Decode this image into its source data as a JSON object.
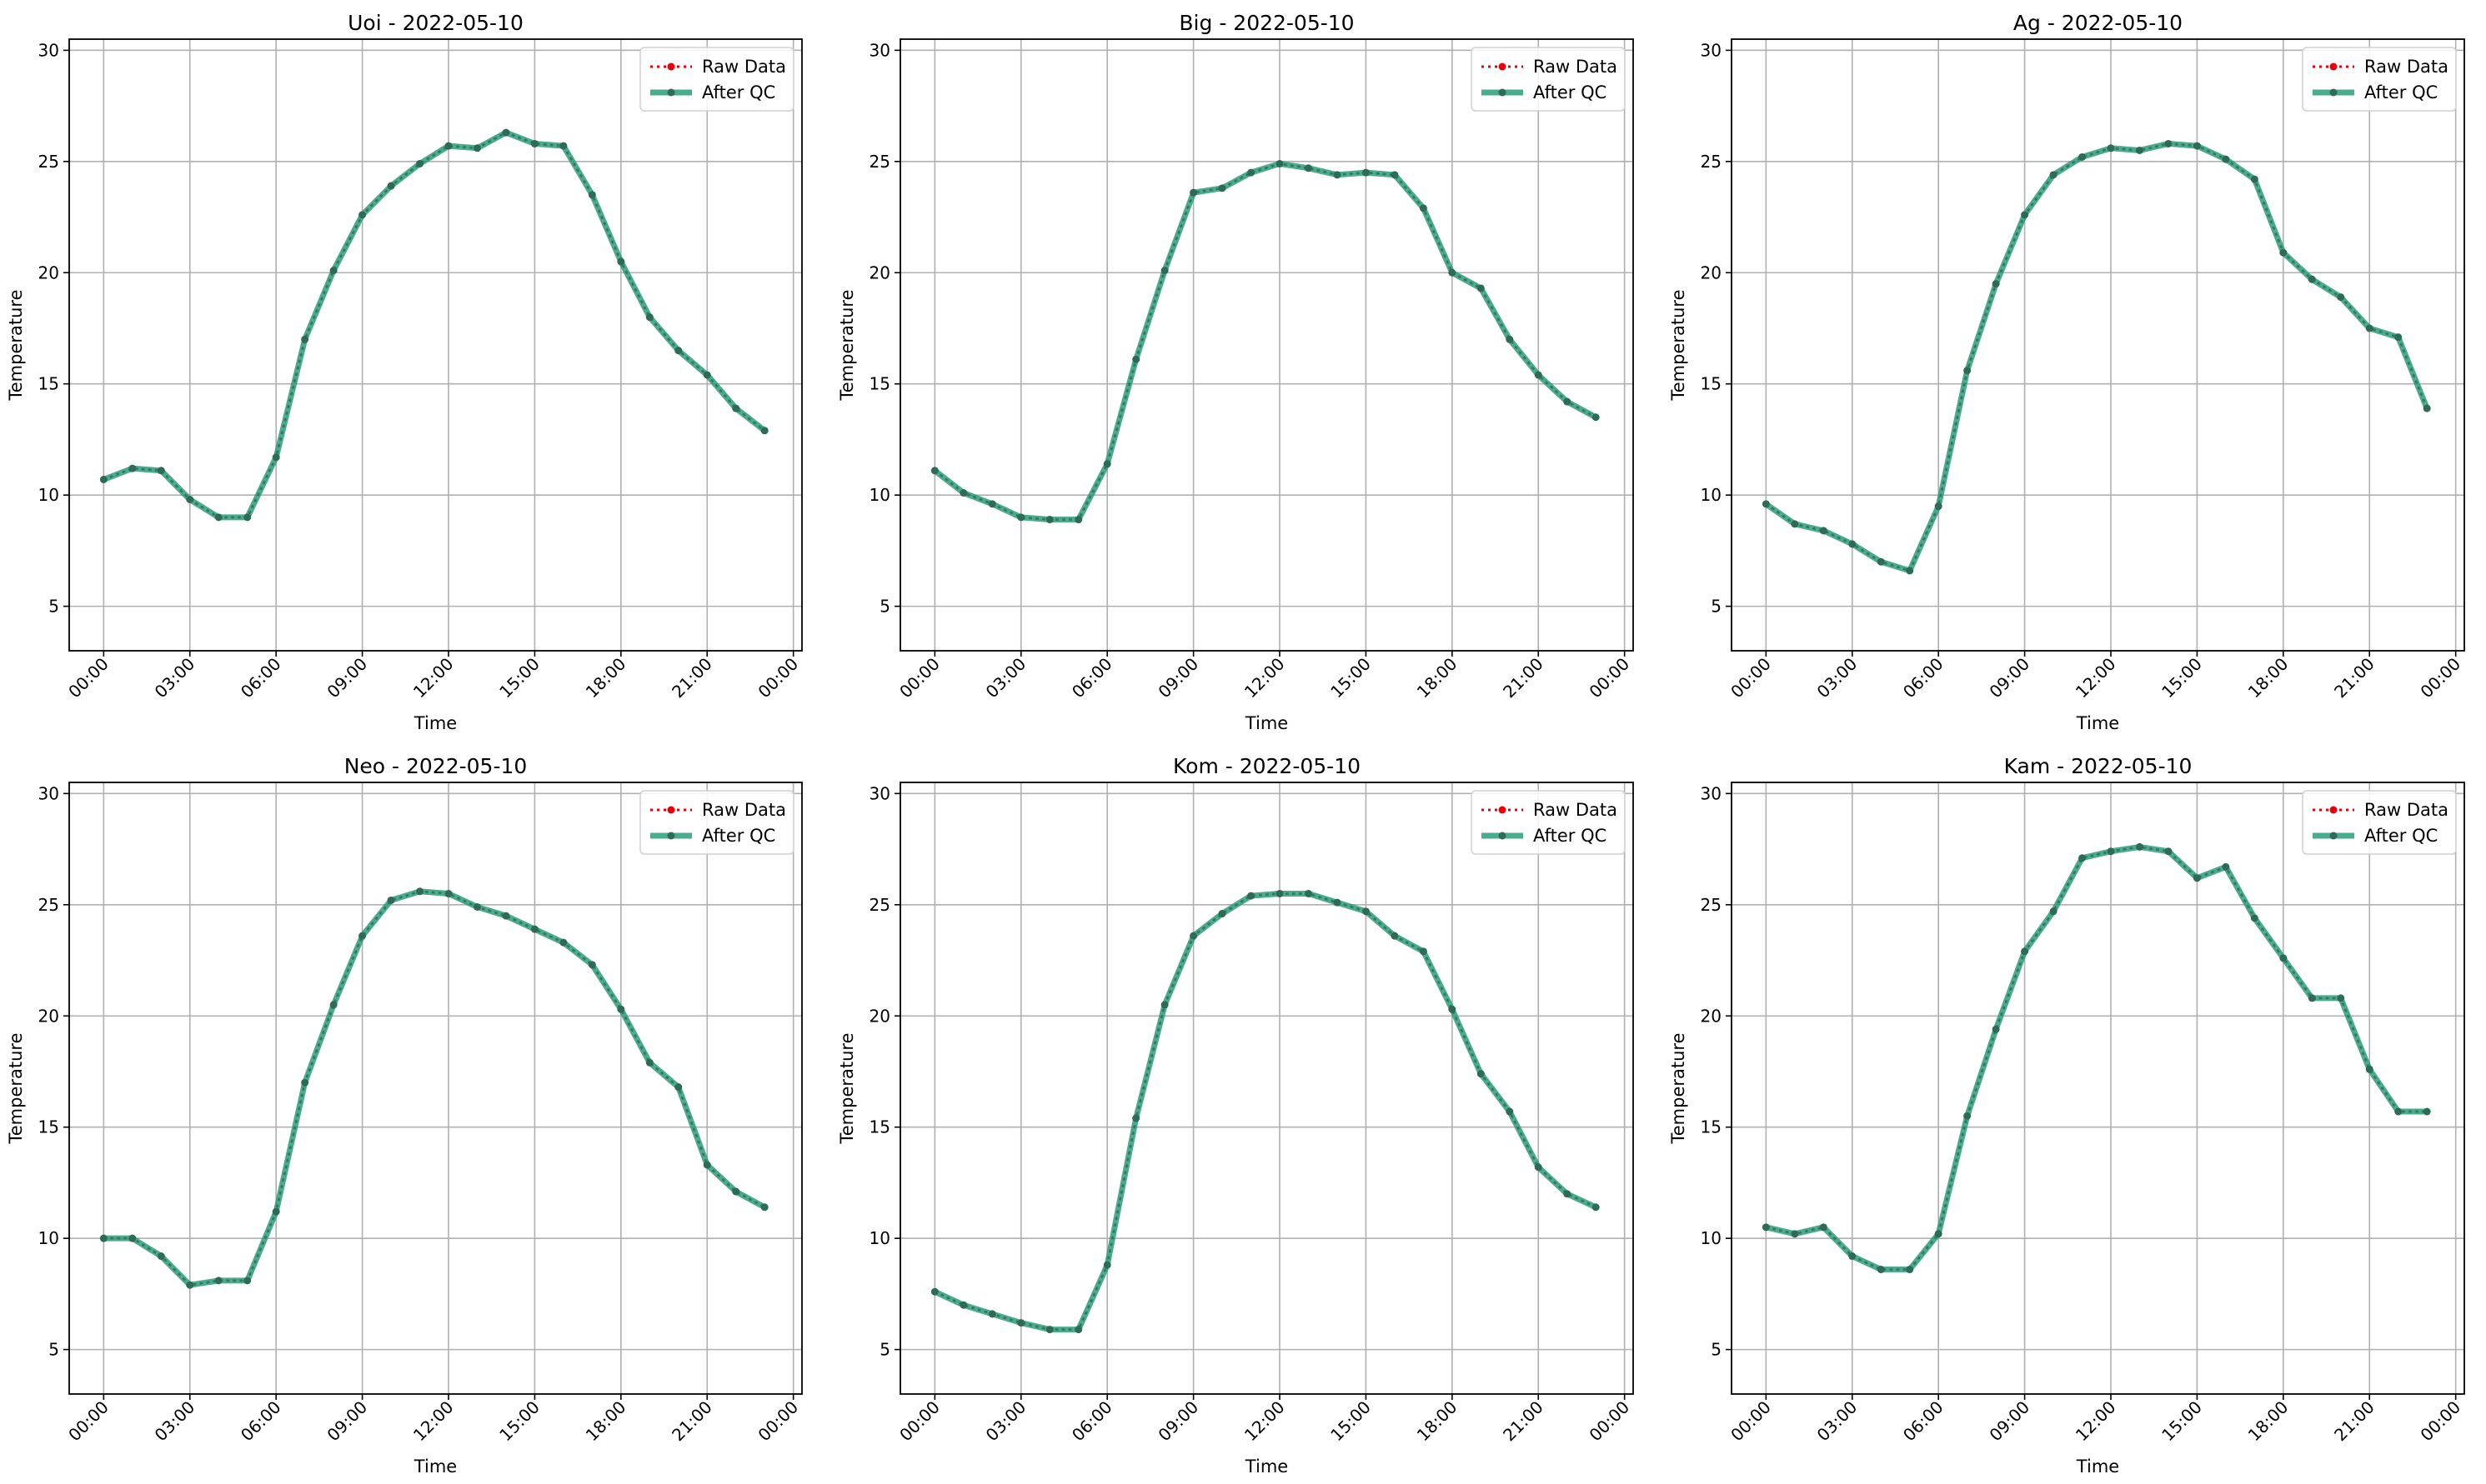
{
  "colors": {
    "raw": "#e8000b",
    "qc": "#2a9d7a",
    "qc_markers": "#2e6b57",
    "grid": "#b0b0b0",
    "axes": "#000000"
  },
  "legend": {
    "raw_label": "Raw Data",
    "qc_label": "After QC",
    "placement": "upper-right"
  },
  "chart_data": [
    {
      "type": "line",
      "title": "Uoi - 2022-05-10",
      "xlabel": "Time",
      "ylabel": "Temperature",
      "ylim": [
        3,
        30.5
      ],
      "yticks": [
        5,
        10,
        15,
        20,
        25,
        30
      ],
      "xticks": [
        "00:00",
        "03:00",
        "06:00",
        "09:00",
        "12:00",
        "15:00",
        "18:00",
        "21:00",
        "00:00"
      ],
      "x": [
        "00:00",
        "01:00",
        "02:00",
        "03:00",
        "04:00",
        "05:00",
        "06:00",
        "07:00",
        "08:00",
        "09:00",
        "10:00",
        "11:00",
        "12:00",
        "13:00",
        "14:00",
        "15:00",
        "16:00",
        "17:00",
        "18:00",
        "19:00",
        "20:00",
        "21:00",
        "22:00",
        "23:00"
      ],
      "grid": true,
      "series": [
        {
          "name": "Raw Data",
          "values": [
            10.7,
            11.2,
            11.1,
            9.8,
            9.0,
            9.0,
            11.7,
            17.0,
            20.1,
            22.6,
            23.9,
            24.9,
            25.7,
            25.6,
            26.3,
            25.8,
            25.7,
            23.5,
            20.5,
            18.0,
            16.5,
            15.4,
            13.9,
            12.9
          ]
        },
        {
          "name": "After QC",
          "values": [
            10.7,
            11.2,
            11.1,
            9.8,
            9.0,
            9.0,
            11.7,
            17.0,
            20.1,
            22.6,
            23.9,
            24.9,
            25.7,
            25.6,
            26.3,
            25.8,
            25.7,
            23.5,
            20.5,
            18.0,
            16.5,
            15.4,
            13.9,
            12.9
          ]
        }
      ]
    },
    {
      "type": "line",
      "title": "Big - 2022-05-10",
      "xlabel": "Time",
      "ylabel": "Temperature",
      "ylim": [
        3,
        30.5
      ],
      "yticks": [
        5,
        10,
        15,
        20,
        25,
        30
      ],
      "xticks": [
        "00:00",
        "03:00",
        "06:00",
        "09:00",
        "12:00",
        "15:00",
        "18:00",
        "21:00",
        "00:00"
      ],
      "x": [
        "00:00",
        "01:00",
        "02:00",
        "03:00",
        "04:00",
        "05:00",
        "06:00",
        "07:00",
        "08:00",
        "09:00",
        "10:00",
        "11:00",
        "12:00",
        "13:00",
        "14:00",
        "15:00",
        "16:00",
        "17:00",
        "18:00",
        "19:00",
        "20:00",
        "21:00",
        "22:00",
        "23:00"
      ],
      "grid": true,
      "series": [
        {
          "name": "Raw Data",
          "values": [
            11.1,
            10.1,
            9.6,
            9.0,
            8.9,
            8.9,
            11.4,
            16.1,
            20.1,
            23.6,
            23.8,
            24.5,
            24.9,
            24.7,
            24.4,
            24.5,
            24.4,
            22.9,
            20.0,
            19.3,
            17.0,
            15.4,
            14.2,
            13.5
          ]
        },
        {
          "name": "After QC",
          "values": [
            11.1,
            10.1,
            9.6,
            9.0,
            8.9,
            8.9,
            11.4,
            16.1,
            20.1,
            23.6,
            23.8,
            24.5,
            24.9,
            24.7,
            24.4,
            24.5,
            24.4,
            22.9,
            20.0,
            19.3,
            17.0,
            15.4,
            14.2,
            13.5
          ]
        }
      ]
    },
    {
      "type": "line",
      "title": "Ag - 2022-05-10",
      "xlabel": "Time",
      "ylabel": "Temperature",
      "ylim": [
        3,
        30.5
      ],
      "yticks": [
        5,
        10,
        15,
        20,
        25,
        30
      ],
      "xticks": [
        "00:00",
        "03:00",
        "06:00",
        "09:00",
        "12:00",
        "15:00",
        "18:00",
        "21:00",
        "00:00"
      ],
      "x": [
        "00:00",
        "01:00",
        "02:00",
        "03:00",
        "04:00",
        "05:00",
        "06:00",
        "07:00",
        "08:00",
        "09:00",
        "10:00",
        "11:00",
        "12:00",
        "13:00",
        "14:00",
        "15:00",
        "16:00",
        "17:00",
        "18:00",
        "19:00",
        "20:00",
        "21:00",
        "22:00",
        "23:00"
      ],
      "grid": true,
      "series": [
        {
          "name": "Raw Data",
          "values": [
            9.6,
            8.7,
            8.4,
            7.8,
            7.0,
            6.6,
            9.5,
            15.6,
            19.5,
            22.6,
            24.4,
            25.2,
            25.6,
            25.5,
            25.8,
            25.7,
            25.1,
            24.2,
            20.9,
            19.7,
            18.9,
            17.5,
            17.1,
            13.9
          ]
        },
        {
          "name": "After QC",
          "values": [
            9.6,
            8.7,
            8.4,
            7.8,
            7.0,
            6.6,
            9.5,
            15.6,
            19.5,
            22.6,
            24.4,
            25.2,
            25.6,
            25.5,
            25.8,
            25.7,
            25.1,
            24.2,
            20.9,
            19.7,
            18.9,
            17.5,
            17.1,
            13.9
          ]
        }
      ]
    },
    {
      "type": "line",
      "title": "Neo - 2022-05-10",
      "xlabel": "Time",
      "ylabel": "Temperature",
      "ylim": [
        3,
        30.5
      ],
      "yticks": [
        5,
        10,
        15,
        20,
        25,
        30
      ],
      "xticks": [
        "00:00",
        "03:00",
        "06:00",
        "09:00",
        "12:00",
        "15:00",
        "18:00",
        "21:00",
        "00:00"
      ],
      "x": [
        "00:00",
        "01:00",
        "02:00",
        "03:00",
        "04:00",
        "05:00",
        "06:00",
        "07:00",
        "08:00",
        "09:00",
        "10:00",
        "11:00",
        "12:00",
        "13:00",
        "14:00",
        "15:00",
        "16:00",
        "17:00",
        "18:00",
        "19:00",
        "20:00",
        "21:00",
        "22:00",
        "23:00"
      ],
      "grid": true,
      "series": [
        {
          "name": "Raw Data",
          "values": [
            10.0,
            10.0,
            9.2,
            7.9,
            8.1,
            8.1,
            11.2,
            17.0,
            20.5,
            23.6,
            25.2,
            25.6,
            25.5,
            24.9,
            24.5,
            23.9,
            23.3,
            22.3,
            20.3,
            17.9,
            16.8,
            13.3,
            12.1,
            11.4
          ]
        },
        {
          "name": "After QC",
          "values": [
            10.0,
            10.0,
            9.2,
            7.9,
            8.1,
            8.1,
            11.2,
            17.0,
            20.5,
            23.6,
            25.2,
            25.6,
            25.5,
            24.9,
            24.5,
            23.9,
            23.3,
            22.3,
            20.3,
            17.9,
            16.8,
            13.3,
            12.1,
            11.4
          ]
        }
      ]
    },
    {
      "type": "line",
      "title": "Kom - 2022-05-10",
      "xlabel": "Time",
      "ylabel": "Temperature",
      "ylim": [
        3,
        30.5
      ],
      "yticks": [
        5,
        10,
        15,
        20,
        25,
        30
      ],
      "xticks": [
        "00:00",
        "03:00",
        "06:00",
        "09:00",
        "12:00",
        "15:00",
        "18:00",
        "21:00",
        "00:00"
      ],
      "x": [
        "00:00",
        "01:00",
        "02:00",
        "03:00",
        "04:00",
        "05:00",
        "06:00",
        "07:00",
        "08:00",
        "09:00",
        "10:00",
        "11:00",
        "12:00",
        "13:00",
        "14:00",
        "15:00",
        "16:00",
        "17:00",
        "18:00",
        "19:00",
        "20:00",
        "21:00",
        "22:00",
        "23:00"
      ],
      "grid": true,
      "series": [
        {
          "name": "Raw Data",
          "values": [
            7.6,
            7.0,
            6.6,
            6.2,
            5.9,
            5.9,
            8.8,
            15.4,
            20.5,
            23.6,
            24.6,
            25.4,
            25.5,
            25.5,
            25.1,
            24.7,
            23.6,
            22.9,
            20.3,
            17.4,
            15.7,
            13.2,
            12.0,
            11.4
          ]
        },
        {
          "name": "After QC",
          "values": [
            7.6,
            7.0,
            6.6,
            6.2,
            5.9,
            5.9,
            8.8,
            15.4,
            20.5,
            23.6,
            24.6,
            25.4,
            25.5,
            25.5,
            25.1,
            24.7,
            23.6,
            22.9,
            20.3,
            17.4,
            15.7,
            13.2,
            12.0,
            11.4
          ]
        }
      ]
    },
    {
      "type": "line",
      "title": "Kam - 2022-05-10",
      "xlabel": "Time",
      "ylabel": "Temperature",
      "ylim": [
        3,
        30.5
      ],
      "yticks": [
        5,
        10,
        15,
        20,
        25,
        30
      ],
      "xticks": [
        "00:00",
        "03:00",
        "06:00",
        "09:00",
        "12:00",
        "15:00",
        "18:00",
        "21:00",
        "00:00"
      ],
      "x": [
        "00:00",
        "01:00",
        "02:00",
        "03:00",
        "04:00",
        "05:00",
        "06:00",
        "07:00",
        "08:00",
        "09:00",
        "10:00",
        "11:00",
        "12:00",
        "13:00",
        "14:00",
        "15:00",
        "16:00",
        "17:00",
        "18:00",
        "19:00",
        "20:00",
        "21:00",
        "22:00",
        "23:00"
      ],
      "grid": true,
      "series": [
        {
          "name": "Raw Data",
          "values": [
            10.5,
            10.2,
            10.5,
            9.2,
            8.6,
            8.6,
            10.2,
            15.5,
            19.4,
            22.9,
            24.7,
            27.1,
            27.4,
            27.6,
            27.4,
            26.2,
            26.7,
            24.4,
            22.6,
            20.8,
            20.8,
            17.6,
            15.7,
            15.7
          ]
        },
        {
          "name": "After QC",
          "values": [
            10.5,
            10.2,
            10.5,
            9.2,
            8.6,
            8.6,
            10.2,
            15.5,
            19.4,
            22.9,
            24.7,
            27.1,
            27.4,
            27.6,
            27.4,
            26.2,
            26.7,
            24.4,
            22.6,
            20.8,
            20.8,
            17.6,
            15.7,
            15.7
          ]
        }
      ]
    }
  ]
}
